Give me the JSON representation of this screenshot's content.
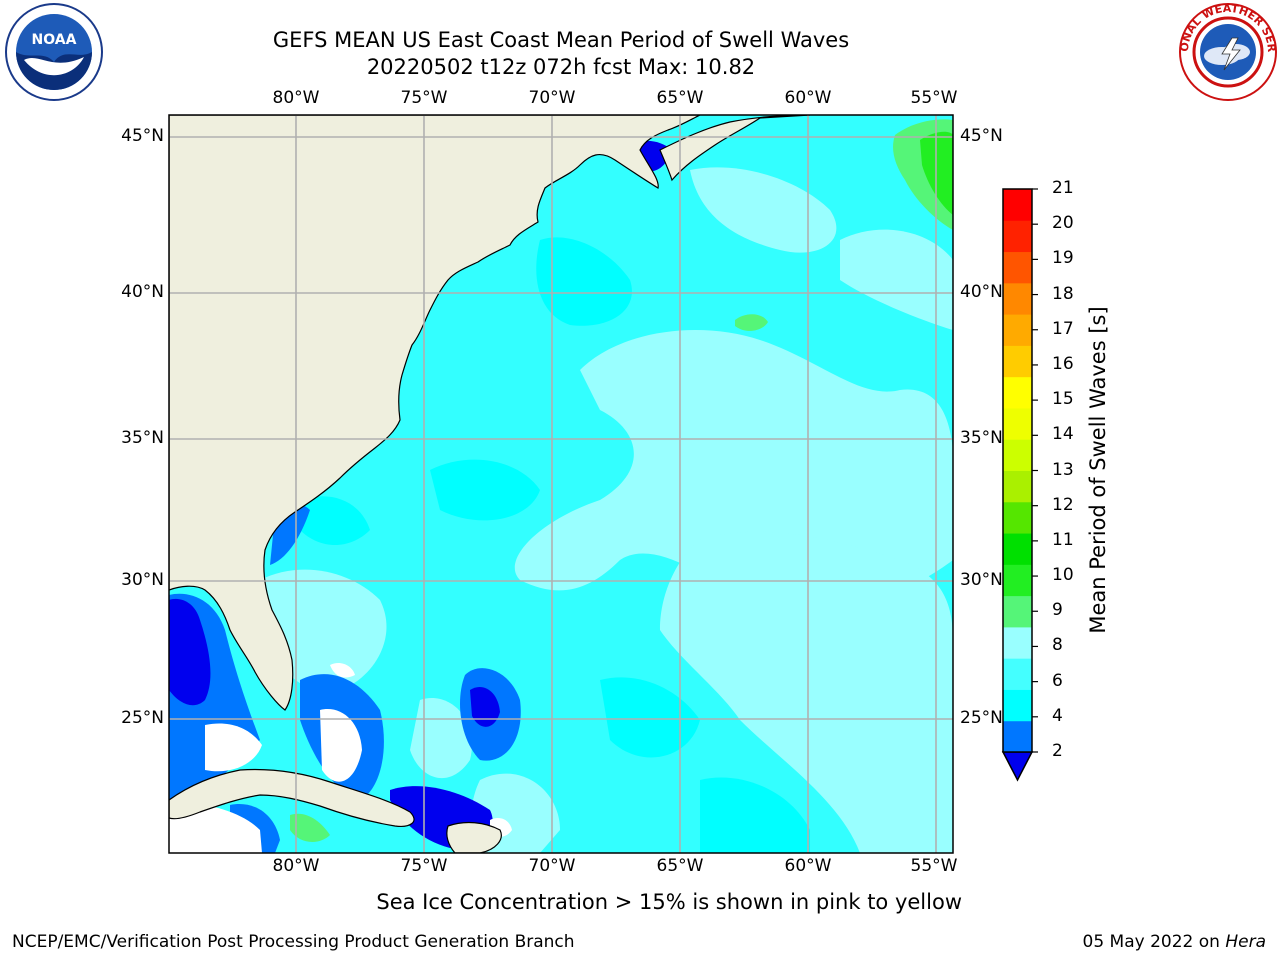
{
  "header": {
    "title_line1": "GEFS MEAN US East Coast Mean Period of Swell Waves",
    "title_line2": "20220502 t12z 072h fcst   Max: 10.82"
  },
  "logos": {
    "left": {
      "icon": "noaa-logo",
      "text": "NOAA"
    },
    "right": {
      "icon": "nws-logo",
      "text": "NATIONAL WEATHER SERVICE"
    }
  },
  "map": {
    "lon_labels": [
      "80°W",
      "75°W",
      "70°W",
      "65°W",
      "60°W",
      "55°W"
    ],
    "lat_labels": [
      "45°N",
      "40°N",
      "35°N",
      "30°N",
      "25°N"
    ],
    "grid": true,
    "colors": {
      "land": "#efefde",
      "background_sea": "#33ffff",
      "no_data": "#ffffff",
      "grid": "#b0b0b0"
    }
  },
  "colorbar": {
    "label": "Mean Period of Swell Waves [s]",
    "ticks": [
      "2",
      "4",
      "6",
      "8",
      "9",
      "10",
      "11",
      "12",
      "13",
      "14",
      "15",
      "16",
      "17",
      "18",
      "19",
      "20",
      "21"
    ],
    "colors": [
      "#0000ee",
      "#0077ff",
      "#00ffff",
      "#44ffff",
      "#99ffff",
      "#55f578",
      "#22ee22",
      "#00e000",
      "#55e600",
      "#aaf000",
      "#ccff00",
      "#eeff00",
      "#ffff00",
      "#ffcc00",
      "#ffaa00",
      "#ff8800",
      "#ff5500",
      "#ff2200",
      "#ff0000"
    ],
    "extend": "min"
  },
  "footer": {
    "note": "Sea Ice Concentration > 15% is shown in pink to yellow",
    "credit": "NCEP/EMC/Verification Post Processing Product Generation Branch",
    "date": "05 May 2022 on",
    "machine": "Hera"
  }
}
